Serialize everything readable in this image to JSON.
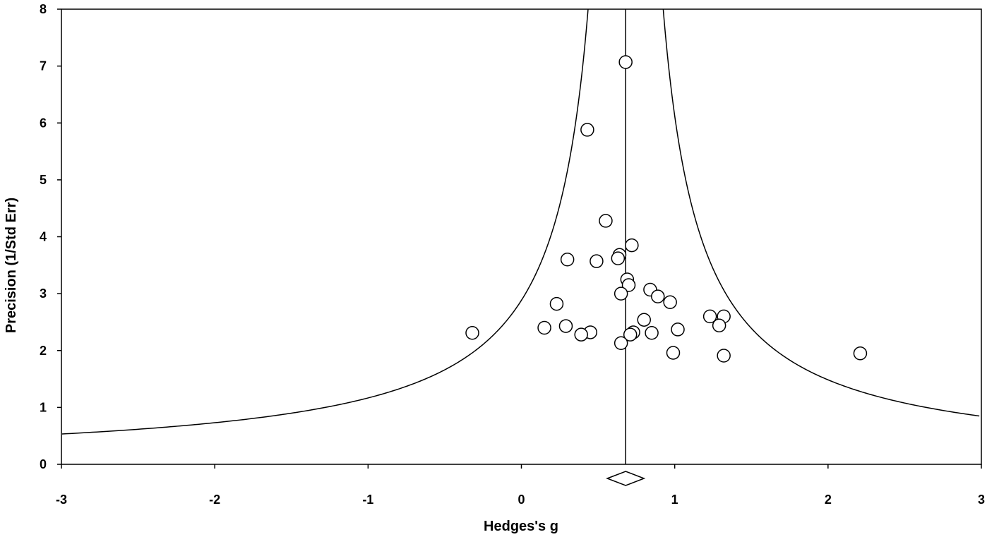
{
  "chart_data": {
    "type": "scatter",
    "title": "",
    "xlabel": "Hedges's g",
    "ylabel": "Precision (1/Std Err)",
    "xlim": [
      -3,
      3
    ],
    "ylim": [
      0,
      8
    ],
    "xticks": [
      "-3",
      "-2",
      "-1",
      "0",
      "1",
      "2",
      "3"
    ],
    "yticks": [
      "0",
      "1",
      "2",
      "3",
      "4",
      "5",
      "6",
      "7",
      "8"
    ],
    "grid": false,
    "legend": "none",
    "summary_effect": 0.68,
    "funnel_z": 1.96,
    "points": [
      {
        "x": 0.68,
        "y": 7.07
      },
      {
        "x": 0.43,
        "y": 5.88
      },
      {
        "x": 0.55,
        "y": 4.28
      },
      {
        "x": 0.72,
        "y": 3.85
      },
      {
        "x": 0.64,
        "y": 3.68
      },
      {
        "x": 0.63,
        "y": 3.62
      },
      {
        "x": 0.3,
        "y": 3.6
      },
      {
        "x": 0.49,
        "y": 3.57
      },
      {
        "x": 0.69,
        "y": 3.25
      },
      {
        "x": 0.7,
        "y": 3.15
      },
      {
        "x": 0.84,
        "y": 3.07
      },
      {
        "x": 0.65,
        "y": 3.0
      },
      {
        "x": 0.89,
        "y": 2.95
      },
      {
        "x": 0.97,
        "y": 2.85
      },
      {
        "x": 0.23,
        "y": 2.82
      },
      {
        "x": 1.23,
        "y": 2.6
      },
      {
        "x": 1.32,
        "y": 2.6
      },
      {
        "x": 0.8,
        "y": 2.54
      },
      {
        "x": 0.29,
        "y": 2.43
      },
      {
        "x": 1.29,
        "y": 2.44
      },
      {
        "x": 0.15,
        "y": 2.4
      },
      {
        "x": 1.02,
        "y": 2.37
      },
      {
        "x": -0.32,
        "y": 2.31
      },
      {
        "x": 0.45,
        "y": 2.32
      },
      {
        "x": 0.85,
        "y": 2.31
      },
      {
        "x": 0.73,
        "y": 2.32
      },
      {
        "x": 0.71,
        "y": 2.28
      },
      {
        "x": 0.39,
        "y": 2.28
      },
      {
        "x": 0.65,
        "y": 2.13
      },
      {
        "x": 0.99,
        "y": 1.96
      },
      {
        "x": 1.32,
        "y": 1.91
      },
      {
        "x": 2.21,
        "y": 1.95
      }
    ]
  },
  "colors": {
    "marker_stroke": "#000000",
    "marker_fill": "#ffffff",
    "line": "#000000"
  }
}
